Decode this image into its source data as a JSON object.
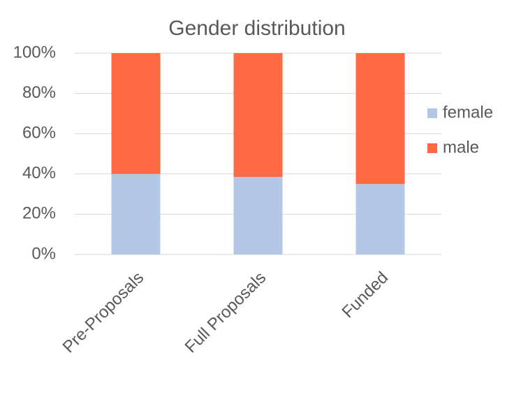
{
  "chart_data": {
    "type": "stacked_bar",
    "title": "Gender distribution",
    "categories": [
      "Pre-Proposals",
      "Full Proposals",
      "Funded"
    ],
    "series": [
      {
        "name": "female",
        "color": "#b4c7e7",
        "values": [
          40,
          38.5,
          35
        ]
      },
      {
        "name": "male",
        "color": "#ff6a45",
        "values": [
          60,
          61.5,
          65
        ]
      }
    ],
    "ylim": [
      0,
      100
    ],
    "yticks": [
      {
        "value": 0,
        "label": "0%"
      },
      {
        "value": 20,
        "label": "20%"
      },
      {
        "value": 40,
        "label": "40%"
      },
      {
        "value": 60,
        "label": "60%"
      },
      {
        "value": 80,
        "label": "80%"
      },
      {
        "value": 100,
        "label": "100%"
      }
    ],
    "grid": true,
    "legend": "right"
  }
}
